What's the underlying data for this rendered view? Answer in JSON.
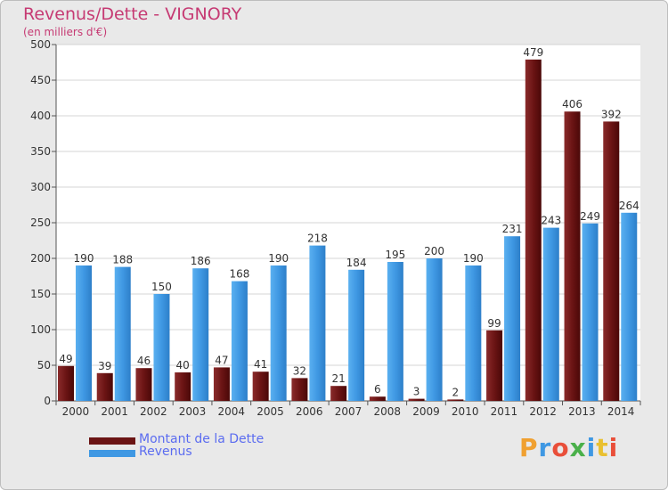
{
  "title": "Revenus/Dette - VIGNORY",
  "subtitle": "(en milliers d'€)",
  "colors": {
    "dette": "#6b1414",
    "revenus": "#3f98e3",
    "title": "#c63a73",
    "legend_text": "#5b6cf0"
  },
  "legend": [
    {
      "label": "Montant de la Dette",
      "color": "#6b1414"
    },
    {
      "label": "Revenus",
      "color": "#3f98e3"
    }
  ],
  "logo": {
    "text": "Proxiti"
  },
  "chart_data": {
    "type": "bar",
    "categories": [
      "2000",
      "2001",
      "2002",
      "2003",
      "2004",
      "2005",
      "2006",
      "2007",
      "2008",
      "2009",
      "2010",
      "2011",
      "2012",
      "2013",
      "2014"
    ],
    "series": [
      {
        "name": "Montant de la Dette",
        "values": [
          49,
          39,
          46,
          40,
          47,
          41,
          32,
          21,
          6,
          3,
          2,
          99,
          479,
          406,
          392
        ]
      },
      {
        "name": "Revenus",
        "values": [
          190,
          188,
          150,
          186,
          168,
          190,
          218,
          184,
          195,
          200,
          190,
          231,
          243,
          249,
          264
        ]
      }
    ],
    "ylim": [
      0,
      500
    ],
    "yticks": [
      0,
      50,
      100,
      150,
      200,
      250,
      300,
      350,
      400,
      450,
      500
    ],
    "grid": true,
    "legend_position": "bottom-left"
  }
}
